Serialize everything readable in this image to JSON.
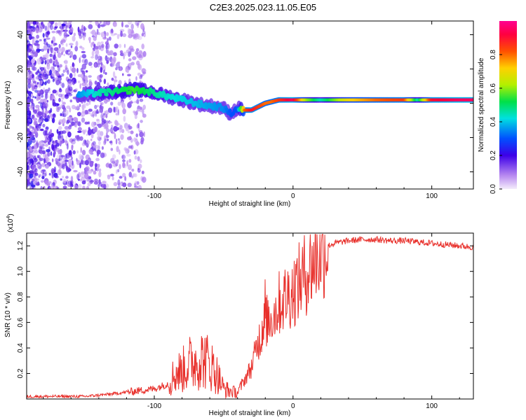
{
  "figure": {
    "title": "C2E3.2025.023.11.05.E05"
  },
  "chart_data": [
    {
      "type": "heatmap",
      "xlabel": "Height of straight line (km)",
      "ylabel": "Frequency (Hz)",
      "xlim": [
        -192,
        130
      ],
      "ylim": [
        -50,
        48
      ],
      "xticks": [
        -100,
        0,
        100
      ],
      "yticks": [
        -40,
        -20,
        0,
        20,
        40
      ],
      "grid": false,
      "colorbar": {
        "label": "Normalized spectral amplitude",
        "range": [
          0,
          1
        ],
        "ticks": [
          0.0,
          0.2,
          0.4,
          0.6,
          0.8
        ]
      },
      "dominant_frequency_trace": {
        "x": [
          -155,
          -140,
          -125,
          -115,
          -105,
          -95,
          -85,
          -75,
          -65,
          -55,
          -50,
          -45,
          -40,
          -35,
          -30,
          -25,
          -20,
          -15,
          -10,
          -5,
          0,
          10,
          20,
          40,
          60,
          80,
          90,
          100,
          120,
          130
        ],
        "y": [
          5,
          6,
          7,
          8,
          7,
          5,
          3,
          1,
          -1,
          -2,
          -3,
          -6,
          -3,
          -4,
          -4,
          -2,
          0,
          1,
          2,
          2,
          2,
          2,
          2,
          2,
          2,
          2,
          2,
          2,
          2,
          2
        ],
        "amplitude": [
          0.35,
          0.45,
          0.5,
          0.55,
          0.5,
          0.45,
          0.42,
          0.4,
          0.38,
          0.36,
          0.35,
          0.3,
          0.3,
          0.8,
          0.9,
          0.85,
          0.8,
          0.8,
          0.85,
          0.9,
          0.95,
          0.6,
          0.45,
          0.7,
          0.8,
          0.85,
          0.45,
          0.9,
          0.95,
          0.95
        ]
      }
    },
    {
      "type": "line",
      "xlabel": "Height of straight line (km)",
      "ylabel": "SNR (10 * v/v)",
      "y_multiplier": "(x10",
      "y_multiplier_exp": "4",
      "y_multiplier_close": ")",
      "xlim": [
        -192,
        130
      ],
      "ylim": [
        0,
        1.3
      ],
      "xticks": [
        -100,
        0,
        100
      ],
      "yticks": [
        0.2,
        0.4,
        0.6,
        0.8,
        1.0,
        1.2
      ],
      "grid": false,
      "series": [
        {
          "color": "#e8302b",
          "x": [
            -192,
            -150,
            -130,
            -115,
            -100,
            -90,
            -85,
            -80,
            -75,
            -70,
            -65,
            -60,
            -55,
            -50,
            -45,
            -40,
            -35,
            -30,
            -25,
            -22,
            -20,
            -18,
            -15,
            -12,
            -10,
            -5,
            0,
            5,
            10,
            15,
            20,
            25,
            30,
            40,
            50,
            60,
            70,
            80,
            90,
            100,
            110,
            120,
            130
          ],
          "y": [
            0.02,
            0.02,
            0.04,
            0.06,
            0.08,
            0.12,
            0.2,
            0.22,
            0.28,
            0.3,
            0.32,
            0.28,
            0.2,
            0.08,
            0.06,
            0.05,
            0.15,
            0.25,
            0.45,
            0.55,
            0.6,
            0.62,
            0.65,
            0.7,
            0.75,
            0.8,
            0.85,
            0.92,
            1.0,
            1.08,
            1.15,
            1.2,
            1.22,
            1.24,
            1.25,
            1.25,
            1.24,
            1.24,
            1.23,
            1.22,
            1.21,
            1.2,
            1.19
          ]
        }
      ]
    }
  ]
}
